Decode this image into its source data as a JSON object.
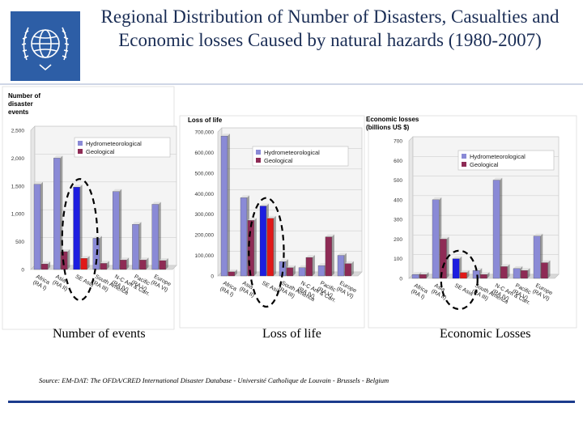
{
  "title": "Regional Distribution of Number of Disasters, Casualties and Economic losses Caused by natural hazards (1980-2007)",
  "logo": {
    "icon": "wmo-emblem-icon",
    "color": "#2d5ea6"
  },
  "colors": {
    "hydro": "#8a8ad6",
    "geo": "#8e2b55",
    "highlight_hydro": "#1d1de0",
    "highlight_geo": "#e01818"
  },
  "captions": {
    "events": "Number of events",
    "loss": "Loss of life",
    "economic": "Economic Losses"
  },
  "source": "Source: EM-DAT: The OFDA/CRED International Disaster Database - Université Catholique de Louvain - Brussels - Belgium",
  "chart_data": [
    {
      "type": "bar",
      "title": "",
      "ylabel": "Number of disaster events",
      "categories": [
        "Africa (RA I)",
        "Asia (RA II)",
        "SE Asia",
        "South America (RA III)",
        "N-C Am & Carr. (RA IV)",
        "Pacific (RA V)",
        "Europe (RA VI)"
      ],
      "series": [
        {
          "name": "Hydrometeorological",
          "values": [
            1530,
            2000,
            1480,
            560,
            1400,
            810,
            1170
          ]
        },
        {
          "name": "Geological",
          "values": [
            100,
            320,
            200,
            110,
            170,
            170,
            160
          ]
        }
      ],
      "highlight_index": 2,
      "ylim": [
        0,
        2500
      ],
      "yticks": [
        "0",
        "500",
        "1,000",
        "1,500",
        "2,000",
        "2,500"
      ],
      "legend": "top"
    },
    {
      "type": "bar",
      "title": "",
      "ylabel": "Loss of life",
      "categories": [
        "Africa (RA I)",
        "Asia (RA II)",
        "SE Asia",
        "South America (RA III)",
        "N-C Am & Carr. (RA IV)",
        "Pacific (RA V)",
        "Europe (RA VI)"
      ],
      "series": [
        {
          "name": "Hydrometeorological",
          "values": [
            680000,
            380000,
            340000,
            70000,
            40000,
            50000,
            100000
          ]
        },
        {
          "name": "Geological",
          "values": [
            20000,
            270000,
            280000,
            40000,
            90000,
            190000,
            60000
          ]
        }
      ],
      "highlight_index": 2,
      "ylim": [
        0,
        700000
      ],
      "yticks": [
        "0",
        "100,000",
        "200,000",
        "300,000",
        "400,000",
        "500,000",
        "600,000",
        "700,000"
      ],
      "legend": "top-right"
    },
    {
      "type": "bar",
      "title": "",
      "ylabel": "Economic losses (billions US $)",
      "categories": [
        "Africa (RA I)",
        "Asia (RA II)",
        "SE Asia",
        "South America (RA III)",
        "N-C Am & Carr. (RA IV)",
        "Pacific (RA V)",
        "Europe (RA VI)"
      ],
      "series": [
        {
          "name": "Hydrometeorological",
          "values": [
            20,
            400,
            100,
            40,
            500,
            50,
            215
          ]
        },
        {
          "name": "Geological",
          "values": [
            20,
            200,
            30,
            20,
            60,
            40,
            80
          ]
        }
      ],
      "highlight_index": 2,
      "ylim": [
        0,
        700
      ],
      "yticks": [
        "0",
        "100",
        "200",
        "300",
        "400",
        "500",
        "600",
        "700"
      ],
      "legend": "top-right"
    }
  ]
}
